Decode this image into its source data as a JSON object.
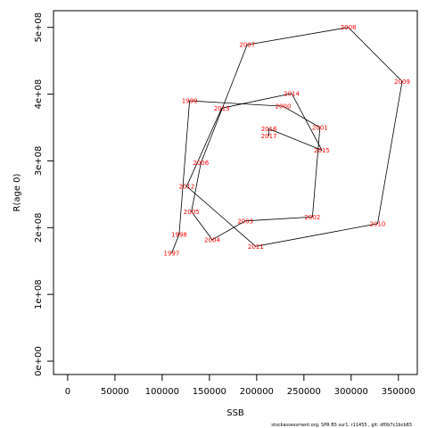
{
  "chart_data": {
    "type": "line",
    "xlabel": "SSB",
    "ylabel": "R(age 0)",
    "xlim": [
      -15000,
      370000
    ],
    "ylim": [
      -20000000,
      525000000
    ],
    "x_ticks": [
      0,
      50000,
      100000,
      150000,
      200000,
      250000,
      300000,
      350000
    ],
    "x_tick_labels": [
      "0",
      "50000",
      "100000",
      "150000",
      "200000",
      "250000",
      "300000",
      "350000"
    ],
    "y_ticks": [
      0,
      100000000,
      200000000,
      300000000,
      400000000,
      500000000
    ],
    "y_tick_labels": [
      "0e+00",
      "1e+08",
      "2e+08",
      "3e+08",
      "4e+08",
      "5e+08"
    ],
    "grid": false,
    "line_color": "#000000",
    "label_color": "#ff0000",
    "points": [
      {
        "year": "1997",
        "ssb": 110000,
        "r": 162000000
      },
      {
        "year": "1998",
        "ssb": 118000,
        "r": 190000000
      },
      {
        "year": "1999",
        "ssb": 129000,
        "r": 390000000
      },
      {
        "year": "2000",
        "ssb": 228000,
        "r": 382000000
      },
      {
        "year": "2001",
        "ssb": 267000,
        "r": 350000000
      },
      {
        "year": "2002",
        "ssb": 259000,
        "r": 216000000
      },
      {
        "year": "2003",
        "ssb": 188000,
        "r": 210000000
      },
      {
        "year": "2004",
        "ssb": 153000,
        "r": 182000000
      },
      {
        "year": "2005",
        "ssb": 131000,
        "r": 224000000
      },
      {
        "year": "2006",
        "ssb": 141000,
        "r": 297000000
      },
      {
        "year": "2007",
        "ssb": 190000,
        "r": 474000000
      },
      {
        "year": "2008",
        "ssb": 297000,
        "r": 500000000
      },
      {
        "year": "2009",
        "ssb": 354000,
        "r": 419000000
      },
      {
        "year": "2010",
        "ssb": 328000,
        "r": 206000000
      },
      {
        "year": "2011",
        "ssb": 199000,
        "r": 172000000
      },
      {
        "year": "2012",
        "ssb": 126000,
        "r": 262000000
      },
      {
        "year": "2013",
        "ssb": 163000,
        "r": 379000000
      },
      {
        "year": "2014",
        "ssb": 237000,
        "r": 401000000
      },
      {
        "year": "2015",
        "ssb": 269000,
        "r": 316000000
      },
      {
        "year": "2016",
        "ssb": 213000,
        "r": 348000000
      },
      {
        "year": "2017",
        "ssb": 213000,
        "r": 337000000
      }
    ]
  },
  "footer_text": "stockassessment.org, SPR BS sur1, r11455 , git: df0b7c1bcb83"
}
